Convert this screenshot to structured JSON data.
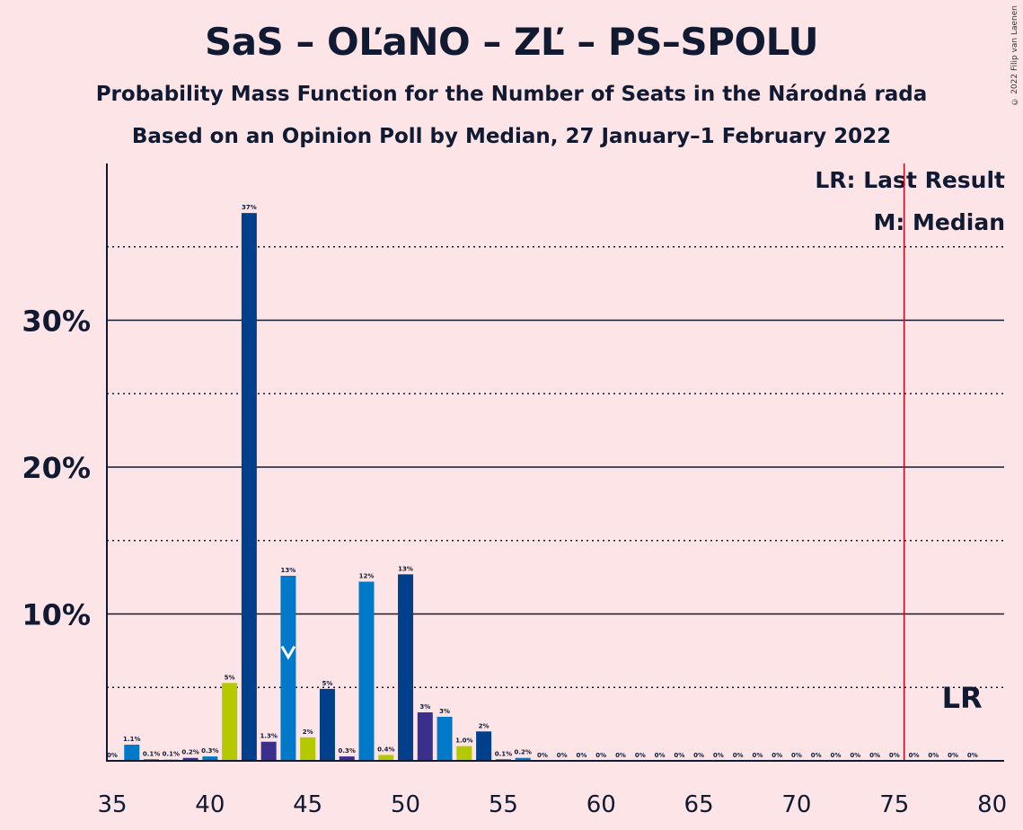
{
  "header": {
    "title": "SaS – OĽaNO – ZĽ – PS–SPOLU",
    "subtitle1": "Probability Mass Function for the Number of Seats in the Národná rada",
    "subtitle2": "Based on an Opinion Poll by Median, 27 January–1 February 2022",
    "copyright": "© 2022 Filip van Laenen"
  },
  "legend": {
    "last_result": "LR: Last Result",
    "median": "M: Median"
  },
  "colors": {
    "background": "#fde4e6",
    "navy": "#003f8a",
    "blue": "#007ac8",
    "purple": "#3a2f8c",
    "green": "#b4c900",
    "lr_line": "#d0021b"
  },
  "chart_data": {
    "type": "bar",
    "x": [
      35,
      36,
      37,
      38,
      39,
      40,
      41,
      42,
      43,
      44,
      45,
      46,
      47,
      48,
      49,
      50,
      51,
      52,
      53,
      54,
      55,
      56,
      57,
      58,
      59,
      60,
      61,
      62,
      63,
      64,
      65,
      66,
      67,
      68,
      69,
      70,
      71,
      72,
      73,
      74,
      75,
      76,
      77,
      78,
      79,
      80
    ],
    "values": [
      0,
      1.1,
      0.1,
      0.1,
      0.2,
      0.3,
      5.3,
      37.3,
      1.3,
      12.6,
      1.6,
      4.9,
      0.3,
      12.2,
      0.4,
      12.7,
      3.3,
      3.0,
      1.0,
      2.0,
      0.1,
      0.2,
      0,
      0,
      0,
      0,
      0,
      0,
      0,
      0,
      0,
      0,
      0,
      0,
      0,
      0,
      0,
      0,
      0,
      0,
      0,
      0,
      0,
      0,
      0,
      0
    ],
    "labels": [
      "0%",
      "1.1%",
      "0.1%",
      "0.1%",
      "0.2%",
      "0.3%",
      "5%",
      "37%",
      "1.3%",
      "13%",
      "2%",
      "5%",
      "0.3%",
      "12%",
      "0.4%",
      "13%",
      "3%",
      "3%",
      "1.0%",
      "2%",
      "0.1%",
      "0.2%",
      "0%",
      "0%",
      "0%",
      "0%",
      "0%",
      "0%",
      "0%",
      "0%",
      "0%",
      "0%",
      "0%",
      "0%",
      "0%",
      "0%",
      "0%",
      "0%",
      "0%",
      "0%",
      "0%",
      "0%",
      "0%",
      "0%",
      "0%",
      ""
    ],
    "bar_colors": [
      "navy",
      "blue",
      "purple",
      "green",
      "purple",
      "blue",
      "green",
      "navy",
      "purple",
      "blue",
      "green",
      "navy",
      "purple",
      "blue",
      "green",
      "navy",
      "purple",
      "blue",
      "green",
      "navy",
      "purple",
      "blue",
      "green",
      "navy",
      "purple",
      "blue",
      "green",
      "navy",
      "purple",
      "blue",
      "green",
      "navy",
      "purple",
      "blue",
      "green",
      "navy",
      "purple",
      "blue",
      "green",
      "navy",
      "purple",
      "blue",
      "green",
      "navy",
      "purple",
      "blue"
    ],
    "xlim": [
      35,
      80
    ],
    "ylim": [
      0,
      40
    ],
    "xticks": [
      35,
      40,
      45,
      50,
      55,
      60,
      65,
      70,
      75,
      80
    ],
    "yticks_labeled": [
      {
        "value": 10,
        "label": "10%"
      },
      {
        "value": 20,
        "label": "20%"
      },
      {
        "value": 30,
        "label": "30%"
      }
    ],
    "dotted_gridlines": [
      5,
      15,
      25,
      35
    ],
    "median": 44,
    "last_result": 76,
    "last_result_label": "LR"
  }
}
